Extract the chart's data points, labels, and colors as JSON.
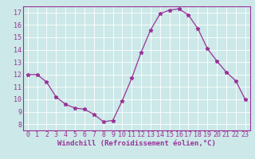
{
  "x": [
    0,
    1,
    2,
    3,
    4,
    5,
    6,
    7,
    8,
    9,
    10,
    11,
    12,
    13,
    14,
    15,
    16,
    17,
    18,
    19,
    20,
    21,
    22,
    23
  ],
  "y": [
    12.0,
    12.0,
    11.4,
    10.2,
    9.6,
    9.3,
    9.2,
    8.8,
    8.2,
    8.3,
    9.9,
    11.7,
    13.8,
    15.6,
    16.9,
    17.2,
    17.3,
    16.8,
    15.7,
    14.1,
    13.1,
    12.2,
    11.5,
    10.0
  ],
  "line_color": "#993399",
  "marker": "*",
  "marker_size": 3.5,
  "xlabel": "Windchill (Refroidissement éolien,°C)",
  "xlim": [
    -0.5,
    23.5
  ],
  "ylim": [
    7.5,
    17.5
  ],
  "yticks": [
    8,
    9,
    10,
    11,
    12,
    13,
    14,
    15,
    16,
    17
  ],
  "xticks": [
    0,
    1,
    2,
    3,
    4,
    5,
    6,
    7,
    8,
    9,
    10,
    11,
    12,
    13,
    14,
    15,
    16,
    17,
    18,
    19,
    20,
    21,
    22,
    23
  ],
  "bg_color": "#cce8e8",
  "grid_color": "#ffffff",
  "line_width": 0.9,
  "axis_label_fontsize": 6.5,
  "tick_fontsize": 6.0,
  "label_color": "#993399",
  "spine_color": "#993399"
}
